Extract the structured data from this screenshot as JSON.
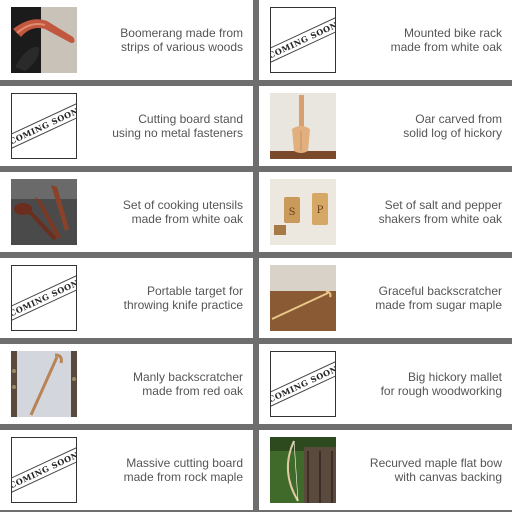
{
  "stamp_text": "COMING SOON",
  "items": [
    {
      "line1": "Boomerang made from",
      "line2": "strips of various woods",
      "image": "boomerang-photo"
    },
    {
      "line1": "Mounted bike rack",
      "line2": "made from white oak",
      "image": "coming-soon"
    },
    {
      "line1": "Cutting board stand",
      "line2": "using no metal fasteners",
      "image": "coming-soon"
    },
    {
      "line1": "Oar carved from",
      "line2": "solid log of hickory",
      "image": "oar-photo"
    },
    {
      "line1": "Set of cooking utensils",
      "line2": "made from white oak",
      "image": "utensils-photo"
    },
    {
      "line1": "Set of salt and pepper",
      "line2": "shakers from white oak",
      "image": "shakers-photo"
    },
    {
      "line1": "Portable target for",
      "line2": "throwing knife practice",
      "image": "coming-soon"
    },
    {
      "line1": "Graceful backscratcher",
      "line2": "made from sugar maple",
      "image": "backscratcher-photo"
    },
    {
      "line1": "Manly backscratcher",
      "line2": "made from red oak",
      "image": "red-oak-backscratcher-photo"
    },
    {
      "line1": "Big hickory mallet",
      "line2": "for rough woodworking",
      "image": "coming-soon"
    },
    {
      "line1": "Massive cutting board",
      "line2": "made from rock maple",
      "image": "coming-soon"
    },
    {
      "line1": "Recurved maple flat bow",
      "line2": "with canvas backing",
      "image": "bow-photo"
    }
  ],
  "colors": {
    "background": "#6e6e6e",
    "card": "#ffffff",
    "caption": "#555555"
  }
}
